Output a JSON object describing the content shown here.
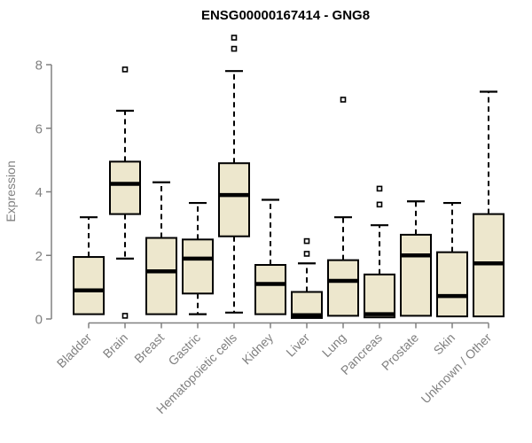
{
  "chart_data": {
    "type": "boxplot",
    "title": "ENSG00000167414 - GNG8",
    "ylabel": "Expression",
    "xlabel": "",
    "yticks": [
      0,
      2,
      4,
      6,
      8
    ],
    "ylim": [
      0,
      9.0
    ],
    "grid": false,
    "legend": "none",
    "categories": [
      "Bladder",
      "Brain",
      "Breast",
      "Gastric",
      "Hematopoietic cells",
      "Kidney",
      "Liver",
      "Lung",
      "Pancreas",
      "Prostate",
      "Skin",
      "Unknown / Other"
    ],
    "series": [
      {
        "name": "Bladder",
        "low": 0.15,
        "q1": 0.15,
        "median": 0.9,
        "q3": 1.95,
        "high": 3.2,
        "outliers": []
      },
      {
        "name": "Brain",
        "low": 1.9,
        "q1": 3.3,
        "median": 4.25,
        "q3": 4.95,
        "high": 6.55,
        "outliers": [
          7.85,
          0.1
        ]
      },
      {
        "name": "Breast",
        "low": 0.15,
        "q1": 0.15,
        "median": 1.5,
        "q3": 2.55,
        "high": 4.3,
        "outliers": []
      },
      {
        "name": "Gastric",
        "low": 0.15,
        "q1": 0.8,
        "median": 1.9,
        "q3": 2.5,
        "high": 3.65,
        "outliers": []
      },
      {
        "name": "Hematopoietic cells",
        "low": 0.2,
        "q1": 2.6,
        "median": 3.9,
        "q3": 4.9,
        "high": 7.8,
        "outliers": [
          8.5,
          8.85
        ]
      },
      {
        "name": "Kidney",
        "low": 0.15,
        "q1": 0.15,
        "median": 1.1,
        "q3": 1.7,
        "high": 3.75,
        "outliers": []
      },
      {
        "name": "Liver",
        "low": 0.03,
        "q1": 0.03,
        "median": 0.12,
        "q3": 0.85,
        "high": 1.75,
        "outliers": [
          2.05,
          2.45
        ]
      },
      {
        "name": "Lung",
        "low": 0.1,
        "q1": 0.1,
        "median": 1.2,
        "q3": 1.85,
        "high": 3.2,
        "outliers": [
          6.9
        ]
      },
      {
        "name": "Pancreas",
        "low": 0.05,
        "q1": 0.05,
        "median": 0.15,
        "q3": 1.4,
        "high": 2.95,
        "outliers": [
          3.6,
          4.1
        ]
      },
      {
        "name": "Prostate",
        "low": 0.1,
        "q1": 0.1,
        "median": 2.0,
        "q3": 2.65,
        "high": 3.7,
        "outliers": []
      },
      {
        "name": "Skin",
        "low": 0.08,
        "q1": 0.08,
        "median": 0.72,
        "q3": 2.1,
        "high": 3.65,
        "outliers": []
      },
      {
        "name": "Unknown / Other",
        "low": 0.08,
        "q1": 0.08,
        "median": 1.75,
        "q3": 3.3,
        "high": 7.15,
        "outliers": []
      }
    ],
    "colors": {
      "box_fill": "#EDE7CD",
      "box_border": "#000000",
      "median": "#000000",
      "whisker": "#000000",
      "outlier_stroke": "#000000",
      "outlier_fill": "#FFFFFF",
      "axis": "#808080",
      "tick_label": "#808080",
      "title": "#000000",
      "background": "#FFFFFF"
    }
  }
}
